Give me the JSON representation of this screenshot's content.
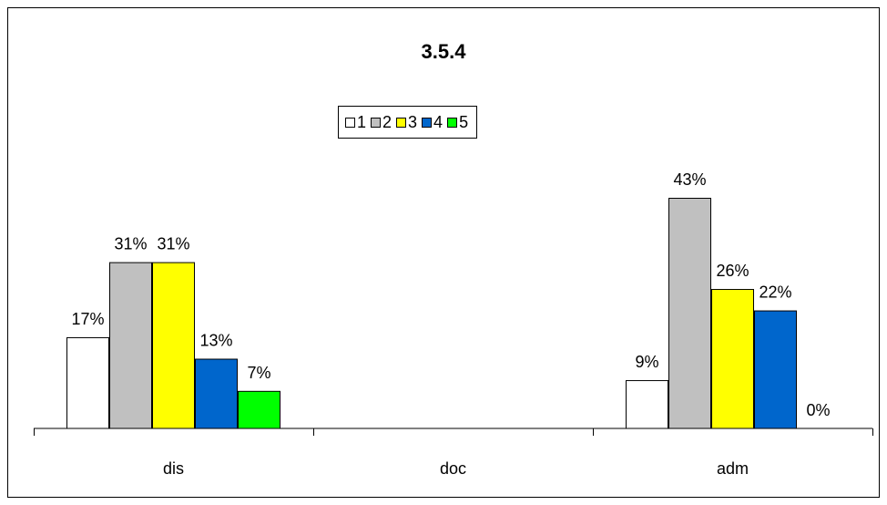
{
  "chart_data": {
    "type": "bar",
    "title": "3.5.4",
    "categories": [
      "dis",
      "doc",
      "adm"
    ],
    "series": [
      {
        "name": "1",
        "color": "#ffffff",
        "values": [
          17,
          null,
          9
        ],
        "labels": [
          "17%",
          "",
          "9%"
        ]
      },
      {
        "name": "2",
        "color": "#c0c0c0",
        "values": [
          31,
          null,
          43
        ],
        "labels": [
          "31%",
          "",
          "43%"
        ]
      },
      {
        "name": "3",
        "color": "#ffff00",
        "values": [
          31,
          null,
          26
        ],
        "labels": [
          "31%",
          "",
          "26%"
        ]
      },
      {
        "name": "4",
        "color": "#0066cc",
        "values": [
          13,
          null,
          22
        ],
        "labels": [
          "13%",
          "",
          "22%"
        ]
      },
      {
        "name": "5",
        "color": "#00ff00",
        "values": [
          7,
          null,
          0
        ],
        "labels": [
          "7%",
          "",
          "0%"
        ]
      }
    ],
    "ylim": [
      0,
      43
    ],
    "grid": false,
    "legend": "top-center"
  }
}
